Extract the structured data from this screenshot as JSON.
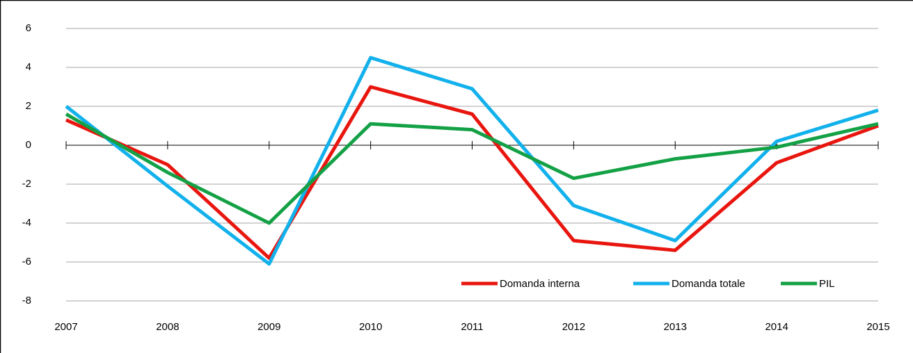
{
  "chart_data": {
    "type": "line",
    "x": [
      2007,
      2008,
      2009,
      2010,
      2011,
      2012,
      2013,
      2014,
      2015
    ],
    "xlim": [
      2007,
      2015
    ],
    "xticks": [
      2007,
      2008,
      2009,
      2010,
      2011,
      2012,
      2013,
      2014,
      2015
    ],
    "ylim": [
      -8,
      6
    ],
    "yticks": [
      6,
      4,
      2,
      0,
      -2,
      -4,
      -6,
      -8
    ],
    "grid": true,
    "legend": "bottom-right",
    "series": [
      {
        "name": "Domanda interna",
        "color": "#e8160f",
        "values": [
          1.3,
          -1.0,
          -5.8,
          3.0,
          1.6,
          -4.9,
          -5.4,
          -0.9,
          1.0
        ]
      },
      {
        "name": "Domanda totale",
        "color": "#12b1ec",
        "values": [
          2.0,
          -2.1,
          -6.1,
          4.5,
          2.9,
          -3.1,
          -4.9,
          0.2,
          1.8
        ]
      },
      {
        "name": "PIL",
        "color": "#14a146",
        "values": [
          1.6,
          -1.4,
          -4.0,
          1.1,
          0.8,
          -1.7,
          -0.7,
          -0.1,
          1.1
        ]
      }
    ]
  }
}
